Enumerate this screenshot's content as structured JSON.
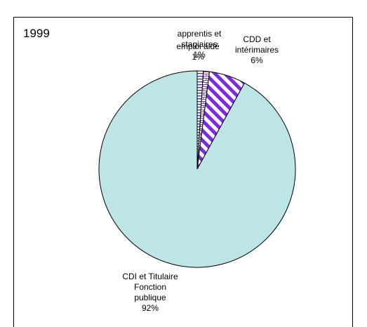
{
  "chart_data": {
    "type": "pie",
    "title": "1999",
    "slices": [
      {
        "label_lines": [
          "apprentis et",
          "stagiaires",
          "1%"
        ],
        "value": 1,
        "color": "#ffffff",
        "pattern": "horizontal-stripes"
      },
      {
        "label_lines": [
          "emploi aidé",
          "1%"
        ],
        "value": 1,
        "color": "#ffffff",
        "pattern": "brick"
      },
      {
        "label_lines": [
          "CDD et",
          "intérimaires",
          "6%"
        ],
        "value": 6,
        "color": "#7b2be2",
        "pattern": "diagonal-stripes"
      },
      {
        "label_lines": [
          "CDI et Titulaire",
          "Fonction",
          "publique",
          "92%"
        ],
        "value": 92,
        "color": "#bde5e5",
        "pattern": "solid"
      }
    ]
  }
}
